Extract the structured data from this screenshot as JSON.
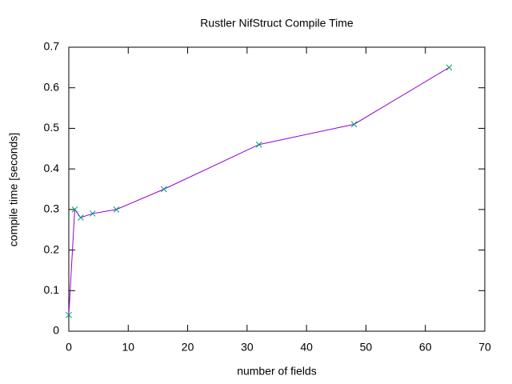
{
  "chart_data": {
    "type": "line",
    "title": "Rustler NifStruct Compile Time",
    "x_label": "number of fields",
    "y_label": "compile time [seconds]",
    "x": [
      0,
      1,
      2,
      4,
      8,
      16,
      32,
      48,
      64
    ],
    "series": [
      {
        "color": "#9400d3",
        "marker_color": "#009e73",
        "values": [
          0.04,
          0.3,
          0.28,
          0.29,
          0.3,
          0.35,
          0.46,
          0.51,
          0.65
        ]
      }
    ],
    "xlim": [
      0,
      70
    ],
    "xticks": [
      0,
      10,
      20,
      30,
      40,
      50,
      60,
      70
    ],
    "ylim": [
      0,
      0.7
    ],
    "yticks": [
      0,
      0.1,
      0.2,
      0.3,
      0.4,
      0.5,
      0.6,
      0.7
    ],
    "grid": false
  }
}
